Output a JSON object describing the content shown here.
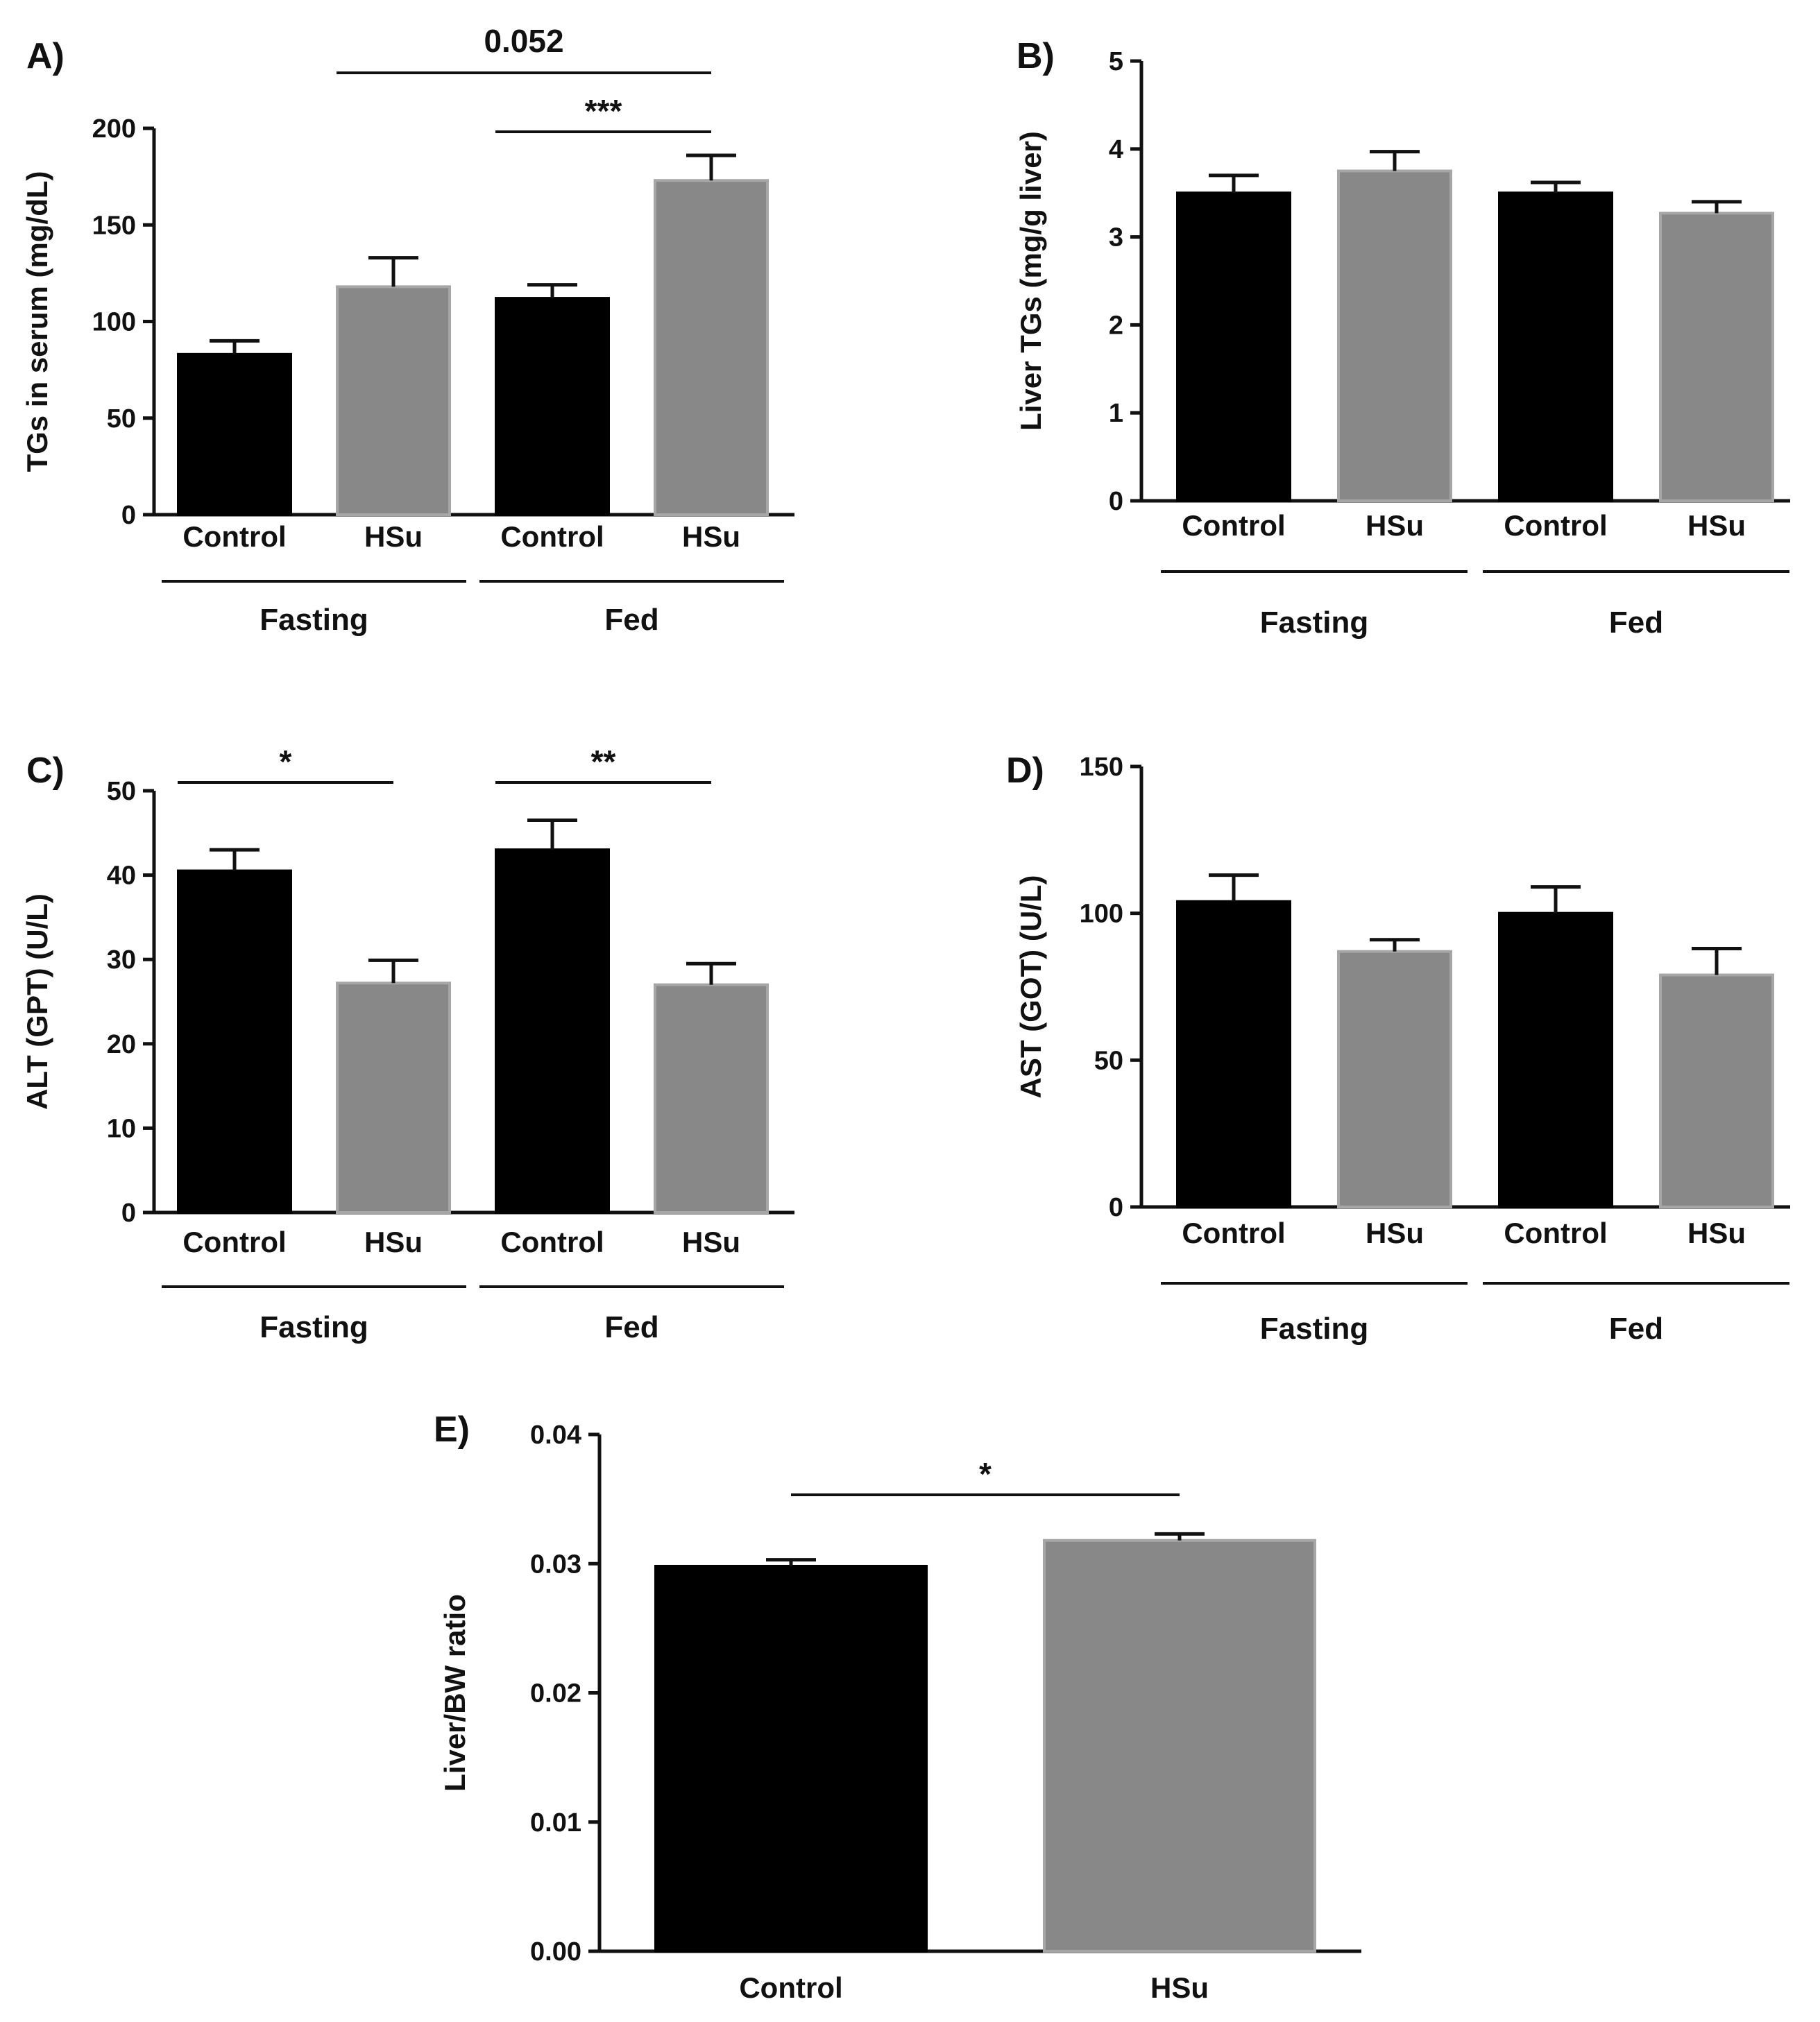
{
  "chart_data": [
    {
      "panel": "A)",
      "type": "bar",
      "ylabel": "TGs in serum (mg/dL)",
      "ylim": [
        0,
        200
      ],
      "yticks": [
        "0",
        "50",
        "100",
        "150",
        "200"
      ],
      "categories": [
        "Control",
        "HSu",
        "Control",
        "HSu"
      ],
      "groups": [
        {
          "label": "Fasting",
          "members": [
            0,
            1
          ]
        },
        {
          "label": "Fed",
          "members": [
            2,
            3
          ]
        }
      ],
      "values": [
        83,
        118,
        112,
        173
      ],
      "errors": [
        7,
        15,
        7,
        13
      ],
      "bar_colors": [
        "#000000",
        "#888888",
        "#000000",
        "#888888"
      ],
      "significance": [
        {
          "from": 1,
          "to": 3,
          "label": "0.052",
          "level": 1
        },
        {
          "from": 2,
          "to": 3,
          "label": "***",
          "level": 0
        }
      ]
    },
    {
      "panel": "B)",
      "type": "bar",
      "ylabel": "Liver TGs (mg/g liver)",
      "ylim": [
        0,
        5
      ],
      "yticks": [
        "0",
        "1",
        "2",
        "3",
        "4",
        "5"
      ],
      "categories": [
        "Control",
        "HSu",
        "Control",
        "HSu"
      ],
      "groups": [
        {
          "label": "Fasting",
          "members": [
            0,
            1
          ]
        },
        {
          "label": "Fed",
          "members": [
            2,
            3
          ]
        }
      ],
      "values": [
        3.5,
        3.75,
        3.5,
        3.27
      ],
      "errors": [
        0.2,
        0.22,
        0.12,
        0.13
      ],
      "bar_colors": [
        "#000000",
        "#888888",
        "#000000",
        "#888888"
      ],
      "significance": []
    },
    {
      "panel": "C)",
      "type": "bar",
      "ylabel": "ALT (GPT) (U/L)",
      "ylim": [
        0,
        50
      ],
      "yticks": [
        "0",
        "10",
        "20",
        "30",
        "40",
        "50"
      ],
      "categories": [
        "Control",
        "HSu",
        "Control",
        "HSu"
      ],
      "groups": [
        {
          "label": "Fasting",
          "members": [
            0,
            1
          ]
        },
        {
          "label": "Fed",
          "members": [
            2,
            3
          ]
        }
      ],
      "values": [
        40.5,
        27.2,
        43,
        27
      ],
      "errors": [
        2.5,
        2.7,
        3.5,
        2.5
      ],
      "bar_colors": [
        "#000000",
        "#888888",
        "#000000",
        "#888888"
      ],
      "significance": [
        {
          "from": 0,
          "to": 1,
          "label": "*",
          "level": 0
        },
        {
          "from": 2,
          "to": 3,
          "label": "**",
          "level": 0
        }
      ]
    },
    {
      "panel": "D)",
      "type": "bar",
      "ylabel": "AST (GOT) (U/L)",
      "ylim": [
        0,
        150
      ],
      "yticks": [
        "0",
        "50",
        "100",
        "150"
      ],
      "categories": [
        "Control",
        "HSu",
        "Control",
        "HSu"
      ],
      "groups": [
        {
          "label": "Fasting",
          "members": [
            0,
            1
          ]
        },
        {
          "label": "Fed",
          "members": [
            2,
            3
          ]
        }
      ],
      "values": [
        104,
        87,
        100,
        79
      ],
      "errors": [
        9,
        4,
        9,
        9
      ],
      "bar_colors": [
        "#000000",
        "#888888",
        "#000000",
        "#888888"
      ],
      "significance": []
    },
    {
      "panel": "E)",
      "type": "bar",
      "ylabel": "Liver/BW ratio",
      "ylim": [
        0,
        0.04
      ],
      "yticks": [
        "0.00",
        "0.01",
        "0.02",
        "0.03",
        "0.04"
      ],
      "categories": [
        "Control",
        "HSu"
      ],
      "groups": [],
      "values": [
        0.0298,
        0.0318
      ],
      "errors": [
        0.0005,
        0.0005
      ],
      "bar_colors": [
        "#000000",
        "#888888"
      ],
      "significance": [
        {
          "from": 0,
          "to": 1,
          "label": "*",
          "level": 0
        }
      ]
    }
  ]
}
